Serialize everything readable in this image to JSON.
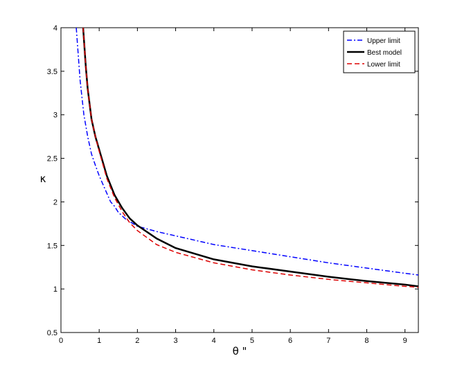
{
  "chart_data": {
    "type": "line",
    "title": "",
    "xlabel": "θ \"",
    "ylabel": "κ",
    "xlim": [
      0,
      9.35
    ],
    "ylim": [
      0.5,
      4
    ],
    "xticks": [
      "0",
      "1",
      "2",
      "3",
      "4",
      "5",
      "6",
      "7",
      "8",
      "9"
    ],
    "yticks": [
      "0.5",
      "1",
      "1.5",
      "2",
      "2.5",
      "3",
      "3.5",
      "4"
    ],
    "grid": false,
    "legend_position": "top-right",
    "series": [
      {
        "name": "Upper limit",
        "color": "#0000ff",
        "dash": "dash-dot",
        "x": [
          0.4,
          0.5,
          0.6,
          0.7,
          0.8,
          0.9,
          1.0,
          1.1,
          1.2,
          1.3,
          1.4,
          1.5,
          1.7,
          2.0,
          2.5,
          3.0,
          4.0,
          5.0,
          6.0,
          7.0,
          8.0,
          9.0,
          9.35
        ],
        "y": [
          4.0,
          3.4,
          3.0,
          2.75,
          2.55,
          2.42,
          2.3,
          2.2,
          2.1,
          2.0,
          1.95,
          1.88,
          1.8,
          1.72,
          1.66,
          1.61,
          1.51,
          1.44,
          1.37,
          1.3,
          1.24,
          1.18,
          1.16
        ]
      },
      {
        "name": "Best model",
        "color": "#000000",
        "dash": "solid",
        "x": [
          0.58,
          0.65,
          0.7,
          0.8,
          0.9,
          1.0,
          1.2,
          1.4,
          1.6,
          1.8,
          2.0,
          2.5,
          3.0,
          4.0,
          5.0,
          6.0,
          7.0,
          8.0,
          9.0,
          9.35
        ],
        "y": [
          4.0,
          3.55,
          3.3,
          2.95,
          2.75,
          2.6,
          2.3,
          2.08,
          1.93,
          1.81,
          1.73,
          1.58,
          1.47,
          1.34,
          1.26,
          1.2,
          1.14,
          1.09,
          1.05,
          1.03
        ]
      },
      {
        "name": "Lower limit",
        "color": "#dd0000",
        "dash": "dashed",
        "x": [
          0.58,
          0.65,
          0.7,
          0.8,
          0.9,
          1.0,
          1.2,
          1.4,
          1.6,
          1.8,
          2.0,
          2.5,
          3.0,
          4.0,
          5.0,
          6.0,
          7.0,
          8.0,
          9.0,
          9.35
        ],
        "y": [
          4.0,
          3.55,
          3.3,
          2.95,
          2.75,
          2.58,
          2.27,
          2.05,
          1.89,
          1.76,
          1.67,
          1.51,
          1.42,
          1.3,
          1.22,
          1.16,
          1.11,
          1.07,
          1.03,
          1.02
        ]
      }
    ]
  }
}
